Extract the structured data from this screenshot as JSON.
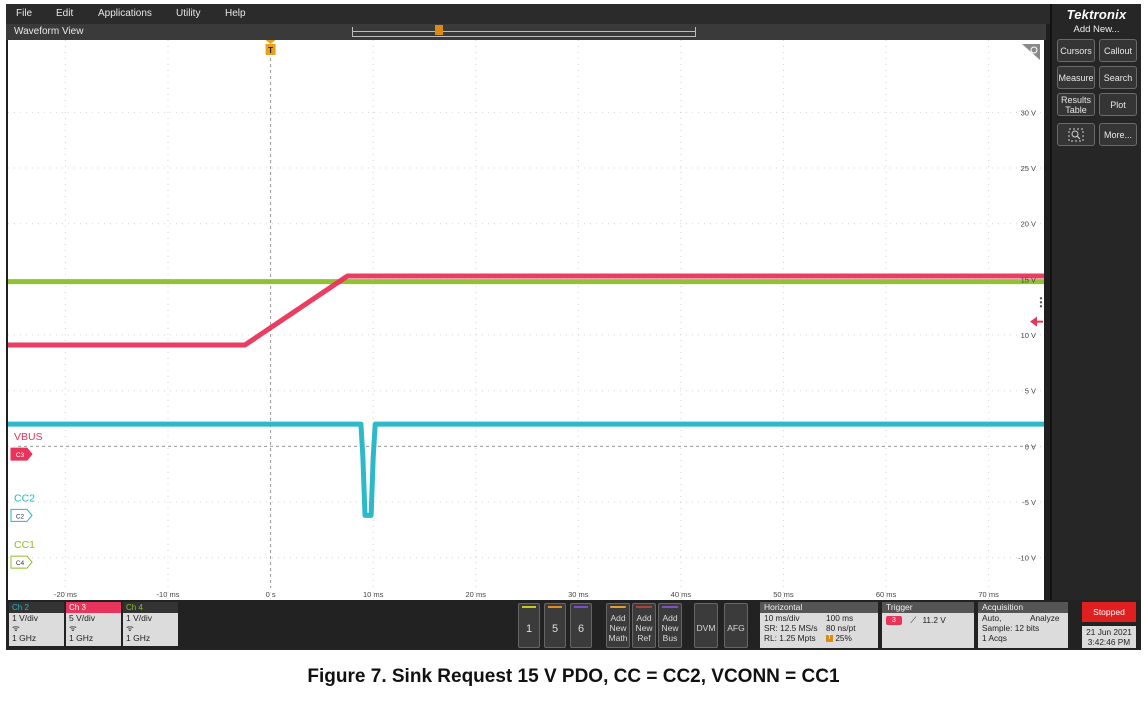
{
  "menu": [
    "File",
    "Edit",
    "Applications",
    "Utility",
    "Help"
  ],
  "waveform_view": {
    "title": "Waveform View"
  },
  "brand": "Tektronix",
  "right_panel": {
    "add_new": "Add New...",
    "buttons": [
      "Cursors",
      "Callout",
      "Measure",
      "Search",
      "Results Table",
      "Plot",
      "More..."
    ]
  },
  "trigger_marker": "T",
  "y_axis": {
    "labels": [
      "30 V",
      "25 V",
      "20 V",
      "15 V",
      "10 V",
      "5 V",
      "0 V",
      "-5 V",
      "-10 V"
    ],
    "values": [
      30,
      25,
      20,
      15,
      10,
      5,
      0,
      -5,
      -10
    ]
  },
  "x_axis": {
    "labels": [
      "-20 ms",
      "-10 ms",
      "0 s",
      "10 ms",
      "20 ms",
      "30 ms",
      "40 ms",
      "50 ms",
      "60 ms",
      "70 ms"
    ],
    "values": [
      -20,
      -10,
      0,
      10,
      20,
      30,
      40,
      50,
      60,
      70
    ]
  },
  "chart_data": {
    "type": "line",
    "x_unit": "ms",
    "y_unit": "V",
    "xlim": [
      -25.6,
      75.4
    ],
    "ylim": [
      -13.8,
      36.5
    ],
    "series": [
      {
        "name": "VBUS",
        "tag": "C3",
        "color": "#e8335a",
        "x": [
          -25.6,
          -2.5,
          7.5,
          75.4
        ],
        "y": [
          9.1,
          9.1,
          15.3,
          15.3
        ]
      },
      {
        "name": "CC1",
        "tag": "C4",
        "color": "#8cbf26",
        "x": [
          -25.6,
          75.4
        ],
        "y": [
          14.8,
          14.8
        ]
      },
      {
        "name": "CC2",
        "tag": "C2",
        "color": "#22b5c4",
        "x": [
          -25.6,
          8.8,
          9.0,
          9.2,
          9.4,
          9.8,
          10.0,
          10.2,
          75.4
        ],
        "y": [
          2.0,
          2.0,
          -1.0,
          -6.2,
          -6.2,
          -6.2,
          -1.0,
          2.0,
          2.0
        ]
      }
    ]
  },
  "channel_labels": [
    {
      "name": "VBUS",
      "tag": "C3",
      "color": "#e8335a"
    },
    {
      "name": "CC2",
      "tag": "C2",
      "color": "#22b5c4"
    },
    {
      "name": "CC1",
      "tag": "C4",
      "color": "#8cbf26"
    }
  ],
  "channels": [
    {
      "header": "Ch 2",
      "color": "#22b5c4",
      "scale": "1 V/div",
      "bw": "1 GHz"
    },
    {
      "header": "Ch 3",
      "color": "#e8335a",
      "scale": "5 V/div",
      "bw": "1 GHz"
    },
    {
      "header": "Ch 4",
      "color": "#8cbf26",
      "scale": "1 V/div",
      "bw": "1 GHz"
    }
  ],
  "num_buttons": [
    {
      "label": "1",
      "color": "#c8c820"
    },
    {
      "label": "5",
      "color": "#e08a20"
    },
    {
      "label": "6",
      "color": "#7a4ec8"
    }
  ],
  "add_buttons": [
    {
      "lines": [
        "Add",
        "New",
        "Math"
      ],
      "color": "#e0a030"
    },
    {
      "lines": [
        "Add",
        "New",
        "Ref"
      ],
      "color": "#b04040"
    },
    {
      "lines": [
        "Add",
        "New",
        "Bus"
      ],
      "color": "#8050c0"
    }
  ],
  "dvm": "DVM",
  "afg": "AFG",
  "horizontal": {
    "title": "Horizontal",
    "scale": "10 ms/div",
    "duration": "100 ms",
    "sr": "SR: 12.5 MS/s",
    "ns_pt": "80 ns/pt",
    "rl": "RL: 1.25 Mpts",
    "position": "25%"
  },
  "trigger": {
    "title": "Trigger",
    "source": "3",
    "level": "11.2 V"
  },
  "acquisition": {
    "title": "Acquisition",
    "mode": "Auto,",
    "analyze": "Analyze",
    "sample": "Sample: 12 bits",
    "acqs": "1 Acqs"
  },
  "status": "Stopped",
  "date": "21 Jun 2021",
  "time": "3:42:46 PM",
  "caption": "Figure 7. Sink Request 15 V PDO, CC = CC2, VCONN = CC1"
}
